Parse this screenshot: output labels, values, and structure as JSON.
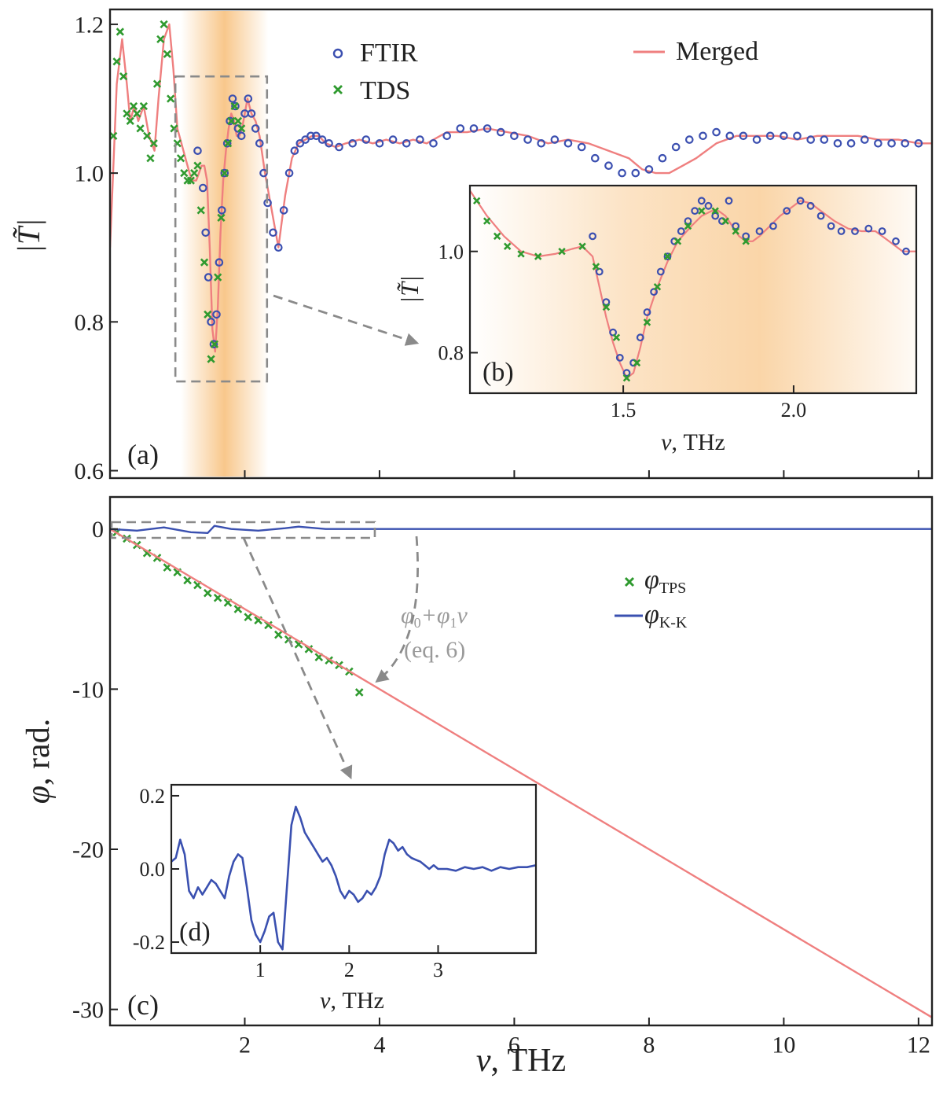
{
  "colors": {
    "ftir": "#3b4fb0",
    "tds": "#2f9a2f",
    "merged": "#ef7f7f",
    "kk": "#3a50b0",
    "axis": "#222222",
    "band": "#f4a23e",
    "guide": "#8a8a8a",
    "annotation_text": "#9a9a9a"
  },
  "chart_data": [
    {
      "id": "a",
      "type": "scatter",
      "panel_label": "(a)",
      "ylabel": "|T̃|",
      "xlabel": "",
      "xlim": [
        0,
        12.2
      ],
      "ylim": [
        0.59,
        1.22
      ],
      "y_ticks": [
        "0.6",
        "0.8",
        "1.0",
        "1.2"
      ],
      "y_tick_values": [
        0.6,
        0.8,
        1.0,
        1.2
      ],
      "x_tick_values": [
        2,
        4,
        6,
        8,
        10,
        12
      ],
      "x_tick_labels_visible": false,
      "legend": {
        "position": "top",
        "entries": [
          {
            "marker": "circle",
            "label": "FTIR"
          },
          {
            "marker": "cross",
            "label": "TDS"
          },
          {
            "marker": "line",
            "label": "Merged"
          }
        ]
      },
      "highlight_band": [
        1.05,
        2.35
      ],
      "zoom_box": {
        "x": [
          0.97,
          2.33
        ],
        "y": [
          0.72,
          1.13
        ]
      },
      "series": [
        {
          "name": "Merged",
          "style": "line",
          "x": [
            0.0,
            0.1,
            0.18,
            0.25,
            0.3,
            0.36,
            0.42,
            0.5,
            0.58,
            0.66,
            0.72,
            0.8,
            0.88,
            0.94,
            1.0,
            1.06,
            1.12,
            1.18,
            1.22,
            1.28,
            1.32,
            1.36,
            1.4,
            1.44,
            1.48,
            1.52,
            1.56,
            1.6,
            1.64,
            1.68,
            1.72,
            1.76,
            1.8,
            1.84,
            1.88,
            1.92,
            1.96,
            2.0,
            2.04,
            2.1,
            2.16,
            2.22,
            2.3,
            2.4,
            2.5,
            2.6,
            2.7,
            2.8,
            2.9,
            3.0,
            3.1,
            3.2,
            3.35,
            3.5,
            3.7,
            3.9,
            4.1,
            4.3,
            4.5,
            4.7,
            5.0,
            5.3,
            5.6,
            5.9,
            6.2,
            6.5,
            6.8,
            7.1,
            7.4,
            7.7,
            7.9,
            8.1,
            8.3,
            8.5,
            8.7,
            9.0,
            9.3,
            9.6,
            9.9,
            10.2,
            10.5,
            10.8,
            11.1,
            11.4,
            11.7,
            12.0,
            12.2
          ],
          "y": [
            0.9,
            1.12,
            1.18,
            1.12,
            1.07,
            1.09,
            1.07,
            1.09,
            1.05,
            1.03,
            1.1,
            1.18,
            1.2,
            1.14,
            1.06,
            1.04,
            1.02,
            1.0,
            0.99,
            0.99,
            1.0,
            1.01,
            1.01,
            0.99,
            0.9,
            0.79,
            0.76,
            0.82,
            0.92,
            0.99,
            1.03,
            1.06,
            1.08,
            1.07,
            1.05,
            1.05,
            1.06,
            1.08,
            1.1,
            1.08,
            1.07,
            1.05,
            1.0,
            0.95,
            0.9,
            0.97,
            1.02,
            1.04,
            1.045,
            1.05,
            1.05,
            1.04,
            1.035,
            1.04,
            1.045,
            1.04,
            1.045,
            1.04,
            1.045,
            1.04,
            1.055,
            1.055,
            1.06,
            1.055,
            1.05,
            1.04,
            1.045,
            1.04,
            1.03,
            1.02,
            1.005,
            1.0,
            1.0,
            1.01,
            1.02,
            1.04,
            1.05,
            1.05,
            1.05,
            1.045,
            1.05,
            1.05,
            1.05,
            1.045,
            1.045,
            1.04,
            1.04
          ]
        },
        {
          "name": "FTIR",
          "style": "circle",
          "x": [
            1.3,
            1.38,
            1.42,
            1.46,
            1.5,
            1.54,
            1.58,
            1.62,
            1.66,
            1.7,
            1.74,
            1.78,
            1.82,
            1.86,
            1.9,
            1.95,
            2.0,
            2.05,
            2.1,
            2.16,
            2.22,
            2.28,
            2.34,
            2.42,
            2.5,
            2.58,
            2.66,
            2.74,
            2.82,
            2.9,
            2.98,
            3.06,
            3.15,
            3.25,
            3.4,
            3.6,
            3.8,
            4.0,
            4.2,
            4.4,
            4.6,
            4.8,
            5.0,
            5.2,
            5.4,
            5.6,
            5.8,
            6.0,
            6.2,
            6.4,
            6.6,
            6.8,
            7.0,
            7.2,
            7.4,
            7.6,
            7.8,
            8.0,
            8.2,
            8.4,
            8.6,
            8.8,
            9.0,
            9.2,
            9.4,
            9.6,
            9.8,
            10.0,
            10.2,
            10.4,
            10.6,
            10.8,
            11.0,
            11.2,
            11.4,
            11.6,
            11.8,
            12.0
          ],
          "y": [
            1.03,
            0.98,
            0.92,
            0.86,
            0.8,
            0.77,
            0.81,
            0.88,
            0.95,
            1.0,
            1.04,
            1.07,
            1.1,
            1.09,
            1.06,
            1.05,
            1.08,
            1.1,
            1.08,
            1.06,
            1.04,
            1.0,
            0.96,
            0.92,
            0.9,
            0.95,
            1.0,
            1.03,
            1.04,
            1.045,
            1.05,
            1.05,
            1.045,
            1.04,
            1.035,
            1.04,
            1.045,
            1.04,
            1.045,
            1.04,
            1.045,
            1.04,
            1.05,
            1.06,
            1.06,
            1.06,
            1.055,
            1.05,
            1.045,
            1.04,
            1.045,
            1.04,
            1.035,
            1.02,
            1.01,
            1.0,
            1.0,
            1.005,
            1.02,
            1.035,
            1.045,
            1.05,
            1.055,
            1.05,
            1.05,
            1.045,
            1.05,
            1.05,
            1.05,
            1.045,
            1.045,
            1.04,
            1.04,
            1.045,
            1.04,
            1.04,
            1.04,
            1.04
          ]
        },
        {
          "name": "TDS",
          "style": "cross",
          "x": [
            0.05,
            0.1,
            0.15,
            0.2,
            0.25,
            0.3,
            0.35,
            0.4,
            0.45,
            0.5,
            0.55,
            0.6,
            0.65,
            0.7,
            0.75,
            0.8,
            0.85,
            0.9,
            0.95,
            1.0,
            1.05,
            1.1,
            1.15,
            1.2,
            1.25,
            1.3,
            1.35,
            1.4,
            1.45,
            1.5,
            1.55,
            1.6,
            1.65,
            1.7,
            1.75,
            1.8,
            1.85,
            1.9,
            1.95
          ],
          "y": [
            1.05,
            1.15,
            1.19,
            1.13,
            1.08,
            1.07,
            1.09,
            1.08,
            1.06,
            1.09,
            1.05,
            1.02,
            1.04,
            1.12,
            1.18,
            1.2,
            1.16,
            1.1,
            1.06,
            1.04,
            1.02,
            1.0,
            0.99,
            0.99,
            1.0,
            1.01,
            0.95,
            0.88,
            0.81,
            0.75,
            0.77,
            0.86,
            0.94,
            1.0,
            1.04,
            1.07,
            1.09,
            1.07,
            1.06
          ]
        }
      ]
    },
    {
      "id": "b",
      "type": "scatter",
      "panel_label": "(b)",
      "ylabel": "|T̃|",
      "xlabel": "ν, THz",
      "xlim": [
        1.05,
        2.36
      ],
      "ylim": [
        0.72,
        1.13
      ],
      "y_ticks": [
        "0.8",
        "1.0"
      ],
      "y_tick_values": [
        0.8,
        1.0
      ],
      "x_ticks": [
        "1.5",
        "2.0"
      ],
      "x_tick_values": [
        1.5,
        2.0
      ],
      "series": [
        {
          "name": "Merged",
          "style": "line",
          "x": [
            1.05,
            1.1,
            1.15,
            1.2,
            1.25,
            1.3,
            1.35,
            1.38,
            1.41,
            1.43,
            1.45,
            1.47,
            1.49,
            1.51,
            1.53,
            1.55,
            1.57,
            1.6,
            1.63,
            1.66,
            1.7,
            1.73,
            1.76,
            1.78,
            1.8,
            1.82,
            1.84,
            1.86,
            1.88,
            1.9,
            1.93,
            1.96,
            1.99,
            2.02,
            2.05,
            2.08,
            2.12,
            2.16,
            2.2,
            2.24,
            2.28,
            2.32,
            2.36
          ],
          "y": [
            1.12,
            1.07,
            1.03,
            1.0,
            0.99,
            0.995,
            1.005,
            1.01,
            0.99,
            0.93,
            0.87,
            0.82,
            0.78,
            0.75,
            0.76,
            0.81,
            0.87,
            0.93,
            0.98,
            1.02,
            1.05,
            1.07,
            1.08,
            1.08,
            1.07,
            1.05,
            1.03,
            1.02,
            1.02,
            1.03,
            1.05,
            1.07,
            1.085,
            1.1,
            1.095,
            1.08,
            1.06,
            1.045,
            1.04,
            1.04,
            1.02,
            1.0,
            1.0
          ]
        },
        {
          "name": "FTIR",
          "style": "circle",
          "x": [
            1.41,
            1.43,
            1.45,
            1.47,
            1.49,
            1.51,
            1.53,
            1.55,
            1.57,
            1.59,
            1.61,
            1.63,
            1.65,
            1.67,
            1.69,
            1.71,
            1.73,
            1.75,
            1.77,
            1.79,
            1.81,
            1.83,
            1.86,
            1.9,
            1.94,
            1.98,
            2.02,
            2.05,
            2.08,
            2.11,
            2.14,
            2.18,
            2.22,
            2.26,
            2.3,
            2.33
          ],
          "y": [
            1.03,
            0.96,
            0.9,
            0.84,
            0.79,
            0.76,
            0.78,
            0.83,
            0.88,
            0.92,
            0.96,
            0.99,
            1.02,
            1.04,
            1.06,
            1.08,
            1.1,
            1.09,
            1.07,
            1.06,
            1.1,
            1.05,
            1.03,
            1.04,
            1.05,
            1.08,
            1.1,
            1.09,
            1.07,
            1.05,
            1.04,
            1.04,
            1.045,
            1.04,
            1.02,
            1.0
          ]
        },
        {
          "name": "TDS",
          "style": "cross",
          "x": [
            1.07,
            1.1,
            1.13,
            1.16,
            1.2,
            1.25,
            1.32,
            1.38,
            1.42,
            1.45,
            1.48,
            1.51,
            1.54,
            1.57,
            1.6,
            1.63,
            1.66,
            1.69,
            1.73,
            1.77,
            1.8,
            1.83,
            1.86
          ],
          "y": [
            1.1,
            1.06,
            1.03,
            1.01,
            0.995,
            0.99,
            1.0,
            1.01,
            0.97,
            0.89,
            0.83,
            0.75,
            0.78,
            0.86,
            0.93,
            0.99,
            1.02,
            1.05,
            1.08,
            1.08,
            1.06,
            1.04,
            1.02
          ]
        }
      ]
    },
    {
      "id": "c",
      "type": "line",
      "panel_label": "(c)",
      "ylabel": "φ, rad.",
      "xlabel": "ν, THz",
      "xlim": [
        0,
        12.2
      ],
      "ylim": [
        -31,
        2
      ],
      "y_ticks": [
        "0",
        "-10",
        "-20",
        "-30"
      ],
      "y_tick_values": [
        0,
        -10,
        -20,
        -30
      ],
      "x_ticks": [
        "2",
        "4",
        "6",
        "8",
        "10",
        "12"
      ],
      "x_tick_values": [
        2,
        4,
        6,
        8,
        10,
        12
      ],
      "legend": {
        "position": "right",
        "entries": [
          {
            "marker": "cross",
            "label": "φ",
            "sub": "TPS"
          },
          {
            "marker": "line",
            "label": "φ",
            "sub": "K-K"
          }
        ]
      },
      "annotation": {
        "formula": [
          "φ",
          "0",
          "+φ",
          "1",
          "ν"
        ],
        "eq": "(eq. 6)"
      },
      "zoom_box": {
        "x": [
          0,
          4.0
        ],
        "y": [
          -0.7,
          0.7
        ]
      },
      "series": [
        {
          "name": "φTPS",
          "style": "cross",
          "x": [
            0.1,
            0.25,
            0.4,
            0.55,
            0.7,
            0.85,
            1.0,
            1.15,
            1.3,
            1.45,
            1.6,
            1.75,
            1.9,
            2.05,
            2.2,
            2.35,
            2.5,
            2.65,
            2.8,
            2.95,
            3.1,
            3.25,
            3.4,
            3.55,
            3.7
          ],
          "y": [
            -0.2,
            -0.6,
            -1.0,
            -1.5,
            -1.8,
            -2.4,
            -2.7,
            -3.2,
            -3.5,
            -4.0,
            -4.3,
            -4.6,
            -5.0,
            -5.5,
            -5.7,
            -6.0,
            -6.6,
            -6.9,
            -7.2,
            -7.5,
            -8.0,
            -8.2,
            -8.5,
            -8.9,
            -10.2
          ]
        },
        {
          "name": "Merged",
          "style": "line",
          "x": [
            0,
            12.2
          ],
          "y": [
            0,
            -30.5
          ]
        },
        {
          "name": "φK-K",
          "style": "line",
          "x": [
            0,
            0.4,
            0.8,
            1.2,
            1.45,
            1.55,
            1.8,
            2.2,
            2.6,
            2.8,
            3.2,
            3.6,
            4.0,
            6.0,
            8.0,
            10.0,
            12.2
          ],
          "y": [
            0,
            -0.1,
            0.1,
            -0.2,
            -0.25,
            0.2,
            0.0,
            -0.1,
            0.05,
            0.15,
            0.0,
            0.0,
            0.0,
            0.0,
            0.0,
            0.0,
            0.0
          ]
        }
      ]
    },
    {
      "id": "d",
      "type": "line",
      "panel_label": "(d)",
      "ylabel": "",
      "xlabel": "ν, THz",
      "xlim": [
        0,
        4.1
      ],
      "ylim": [
        -0.23,
        0.23
      ],
      "y_ticks": [
        "0.2",
        "0.0",
        "-0.2"
      ],
      "y_tick_values": [
        0.2,
        0.0,
        -0.2
      ],
      "x_ticks": [
        "1",
        "2",
        "3"
      ],
      "x_tick_values": [
        1,
        2,
        3
      ],
      "series": [
        {
          "name": "φK-K",
          "style": "line",
          "x": [
            0.0,
            0.05,
            0.1,
            0.15,
            0.2,
            0.25,
            0.3,
            0.35,
            0.4,
            0.45,
            0.5,
            0.55,
            0.6,
            0.65,
            0.7,
            0.75,
            0.8,
            0.85,
            0.9,
            0.95,
            1.0,
            1.05,
            1.1,
            1.15,
            1.2,
            1.25,
            1.3,
            1.35,
            1.4,
            1.45,
            1.5,
            1.55,
            1.6,
            1.65,
            1.7,
            1.75,
            1.8,
            1.85,
            1.9,
            1.95,
            2.0,
            2.05,
            2.1,
            2.15,
            2.2,
            2.25,
            2.3,
            2.35,
            2.4,
            2.45,
            2.5,
            2.55,
            2.6,
            2.65,
            2.7,
            2.75,
            2.8,
            2.85,
            2.9,
            2.95,
            3.0,
            3.1,
            3.2,
            3.3,
            3.4,
            3.5,
            3.6,
            3.7,
            3.8,
            3.9,
            4.0,
            4.1
          ],
          "y": [
            0.02,
            0.03,
            0.08,
            0.04,
            -0.06,
            -0.08,
            -0.05,
            -0.07,
            -0.05,
            -0.03,
            -0.04,
            -0.06,
            -0.08,
            -0.02,
            0.02,
            0.04,
            0.03,
            -0.05,
            -0.14,
            -0.18,
            -0.2,
            -0.17,
            -0.13,
            -0.12,
            -0.2,
            -0.22,
            -0.05,
            0.12,
            0.17,
            0.14,
            0.1,
            0.08,
            0.06,
            0.04,
            0.02,
            0.03,
            0.01,
            -0.02,
            -0.06,
            -0.08,
            -0.06,
            -0.07,
            -0.09,
            -0.08,
            -0.06,
            -0.07,
            -0.05,
            -0.02,
            0.04,
            0.08,
            0.07,
            0.05,
            0.06,
            0.04,
            0.03,
            0.025,
            0.02,
            0.01,
            0.0,
            0.01,
            0.0,
            0.0,
            -0.005,
            0.005,
            0.0,
            0.005,
            -0.005,
            0.005,
            0.0,
            0.005,
            0.005,
            0.01
          ]
        }
      ]
    }
  ]
}
